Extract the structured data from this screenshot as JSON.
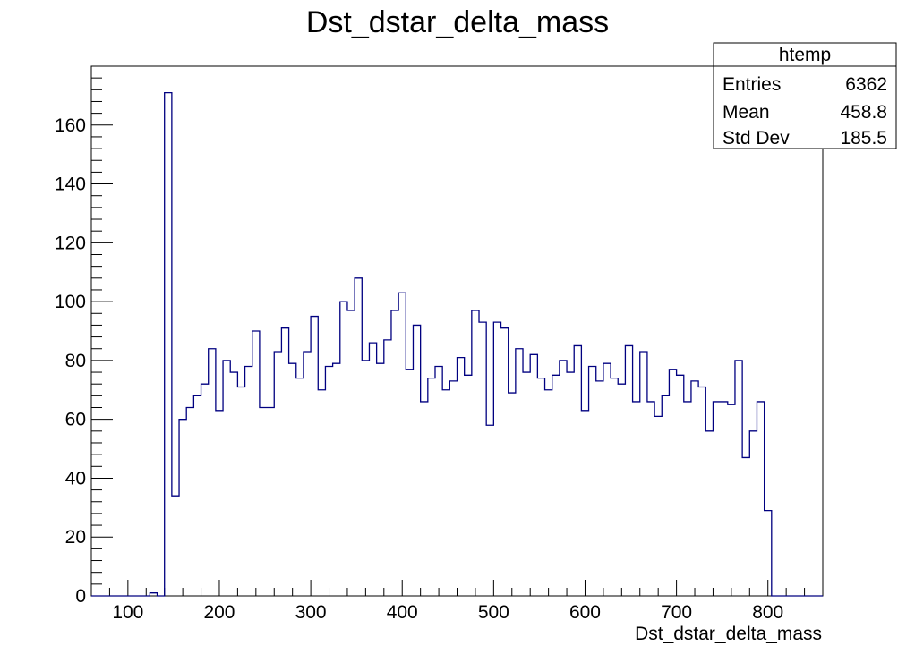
{
  "chart_data": {
    "type": "bar",
    "subtype": "histogram-step",
    "title": "Dst_dstar_delta_mass",
    "xlabel": "Dst_dstar_delta_mass",
    "ylabel": "",
    "xlim": [
      60,
      860
    ],
    "ylim": [
      0,
      180
    ],
    "x_major_ticks": [
      100,
      200,
      300,
      400,
      500,
      600,
      700,
      800
    ],
    "y_major_ticks": [
      0,
      20,
      40,
      60,
      80,
      100,
      120,
      140,
      160
    ],
    "bin_width": 8,
    "series": [
      {
        "color": "#000080",
        "bin_edges_start": 60,
        "values": [
          0,
          0,
          0,
          0,
          0,
          0,
          0,
          0,
          1,
          0,
          171,
          34,
          60,
          64,
          68,
          72,
          84,
          63,
          80,
          76,
          71,
          78,
          90,
          64,
          64,
          83,
          91,
          79,
          74,
          83,
          95,
          70,
          78,
          79,
          100,
          97,
          108,
          80,
          86,
          79,
          87,
          97,
          103,
          77,
          92,
          66,
          74,
          78,
          70,
          73,
          81,
          75,
          97,
          93,
          58,
          93,
          91,
          69,
          84,
          76,
          82,
          74,
          70,
          75,
          80,
          76,
          85,
          63,
          78,
          73,
          79,
          74,
          72,
          85,
          66,
          83,
          66,
          61,
          68,
          77,
          75,
          66,
          73,
          71,
          56,
          66,
          66,
          65,
          80,
          47,
          56,
          66,
          29,
          0,
          0,
          0,
          0,
          0,
          0,
          0
        ]
      }
    ],
    "stats_box": {
      "name": "htemp",
      "rows": [
        {
          "label": "Entries",
          "value": "6362"
        },
        {
          "label": "Mean",
          "value": "458.8"
        },
        {
          "label": "Std Dev",
          "value": "185.5"
        }
      ]
    },
    "grid": false,
    "legend": "none"
  }
}
